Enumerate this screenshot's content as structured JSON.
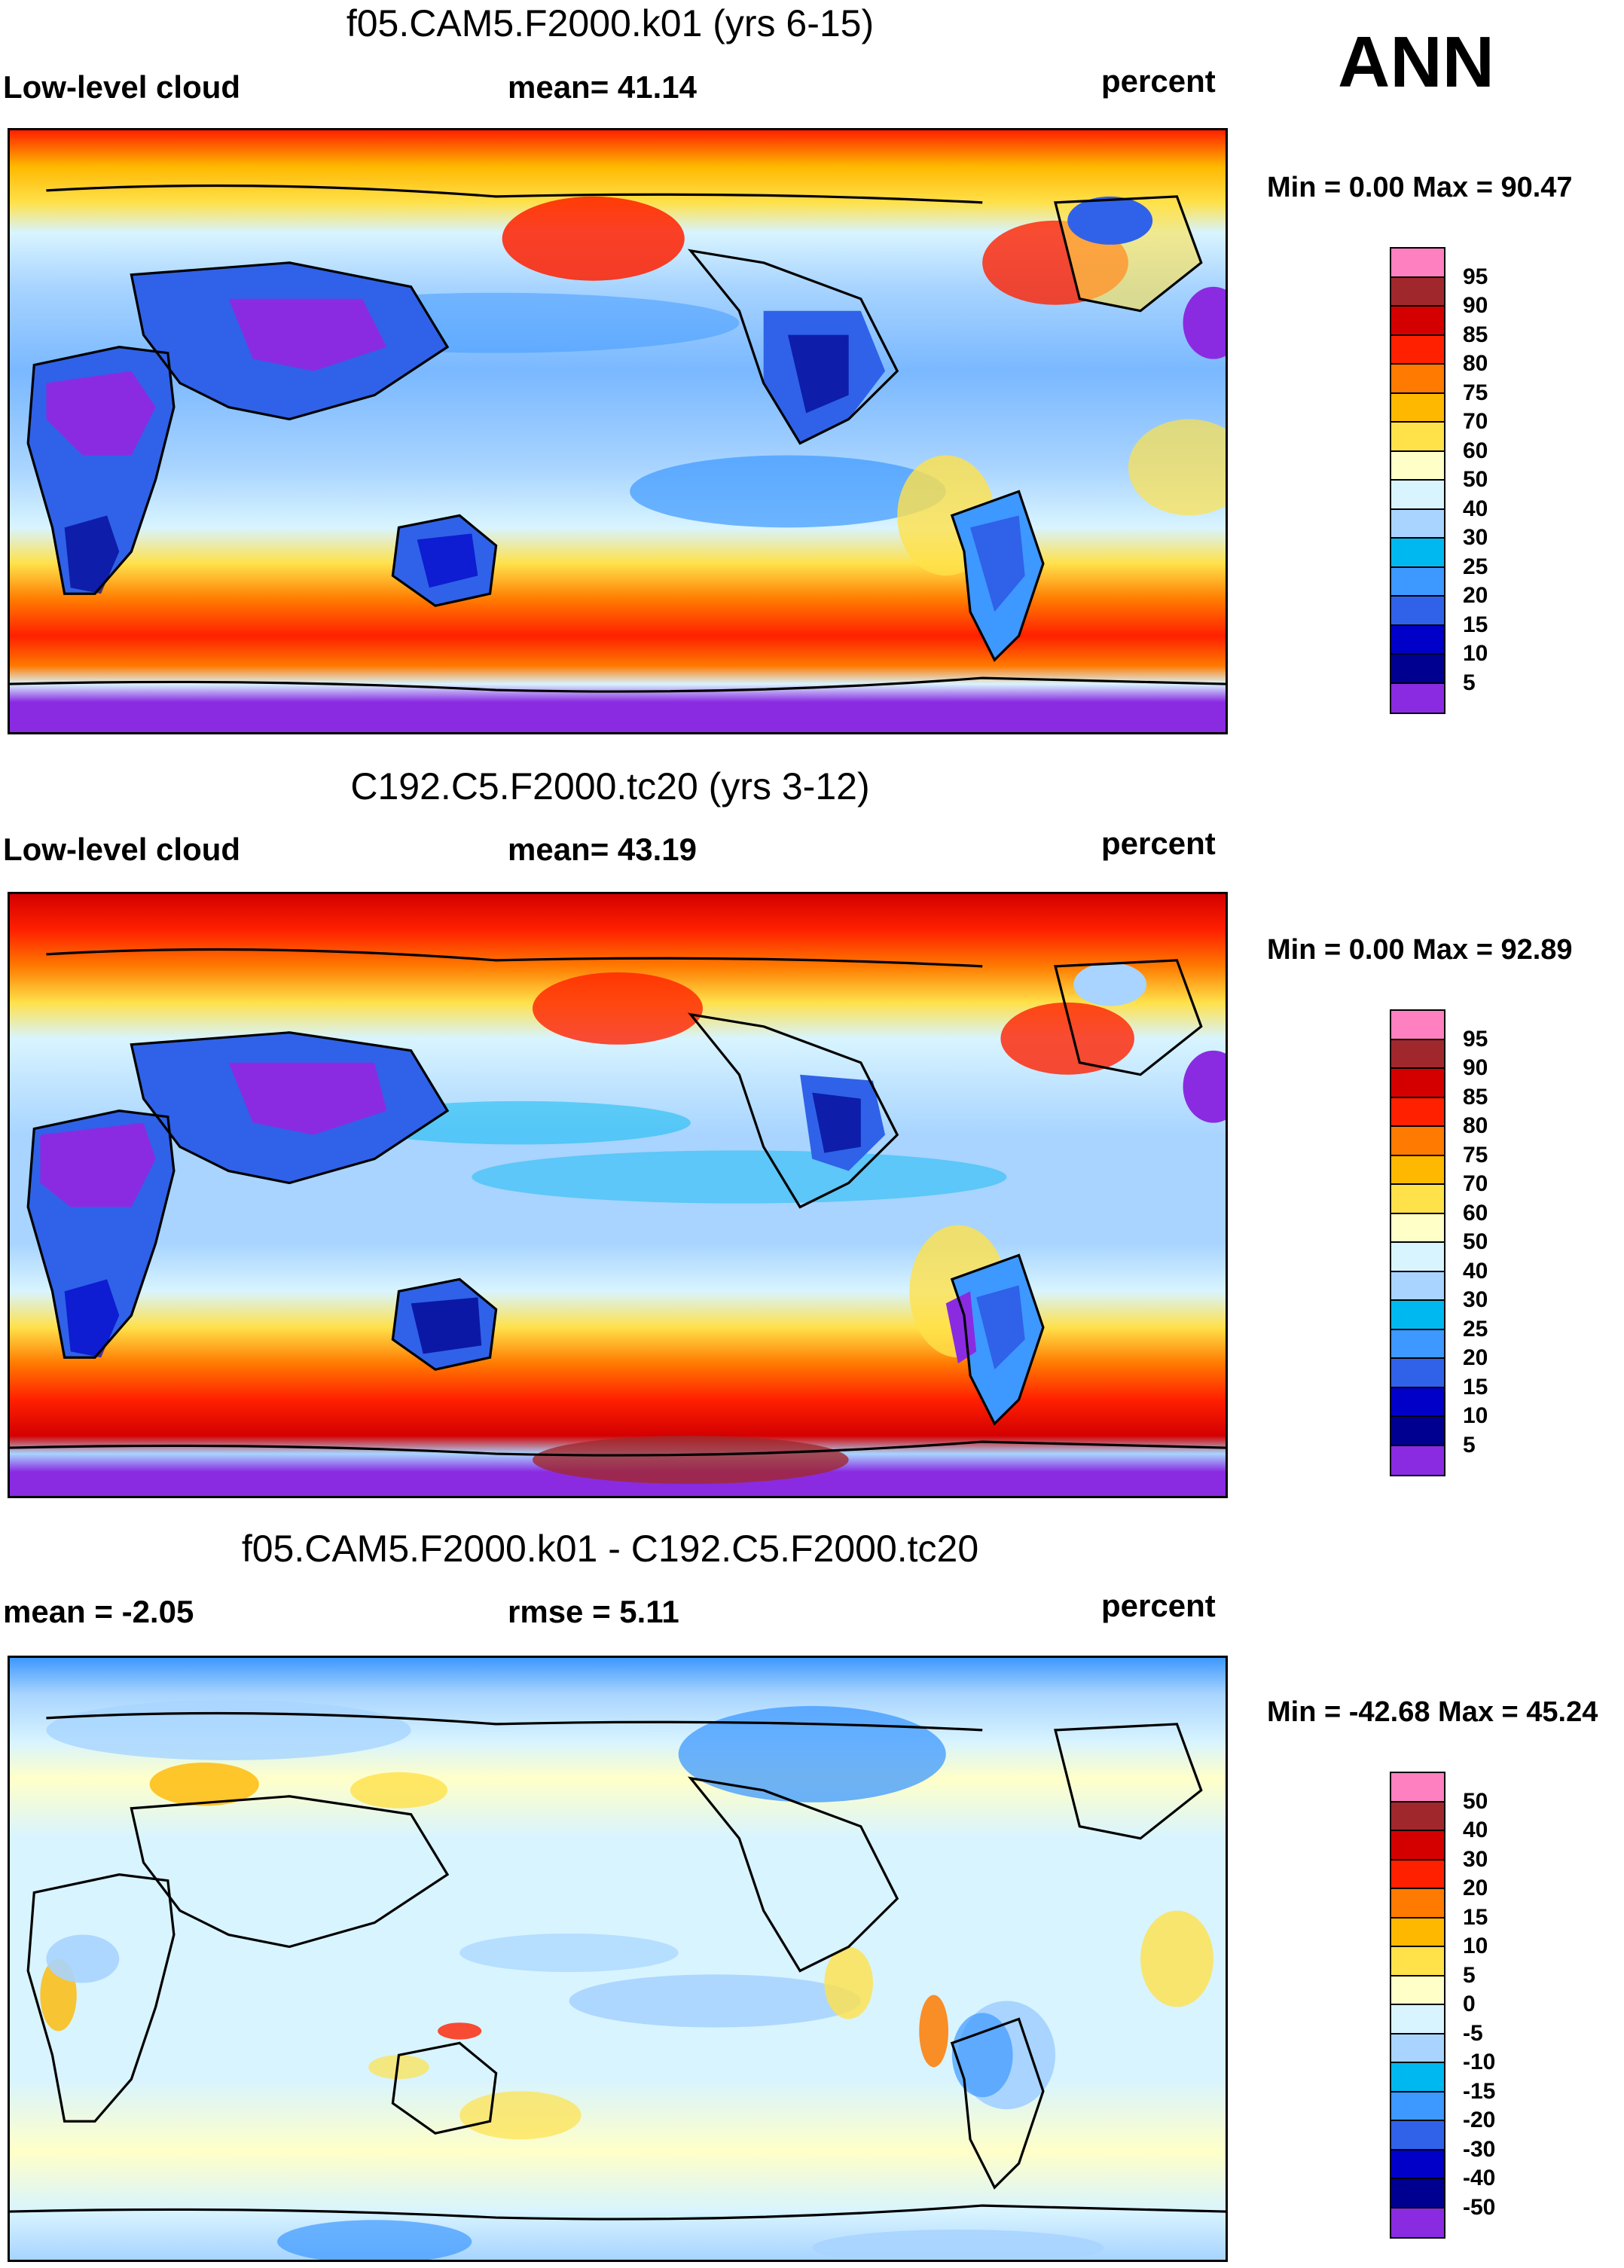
{
  "season": "ANN",
  "panels": [
    {
      "title": "f05.CAM5.F2000.k01 (yrs 6-15)",
      "left_label": "Low-level cloud",
      "center_label": "mean=  41.14",
      "right_label": "percent",
      "minmax": "Min =   0.00 Max =  90.47",
      "colorbar": {
        "colors": [
          "#ff80c0",
          "#a0282d",
          "#d40000",
          "#ff2000",
          "#ff7a00",
          "#ffb800",
          "#ffe14a",
          "#ffffc8",
          "#d8f4ff",
          "#a8d4ff",
          "#00b8f0",
          "#3d98ff",
          "#2f62e8",
          "#0000c8",
          "#000090",
          "#8a2be2"
        ],
        "labels": [
          "95",
          "90",
          "85",
          "80",
          "75",
          "70",
          "60",
          "50",
          "40",
          "30",
          "25",
          "20",
          "15",
          "10",
          "5"
        ]
      }
    },
    {
      "title": "C192.C5.F2000.tc20 (yrs 3-12)",
      "left_label": "Low-level cloud",
      "center_label": "mean=  43.19",
      "right_label": "percent",
      "minmax": "Min =   0.00 Max =  92.89",
      "colorbar": {
        "colors": [
          "#ff80c0",
          "#a0282d",
          "#d40000",
          "#ff2000",
          "#ff7a00",
          "#ffb800",
          "#ffe14a",
          "#ffffc8",
          "#d8f4ff",
          "#a8d4ff",
          "#00b8f0",
          "#3d98ff",
          "#2f62e8",
          "#0000c8",
          "#000090",
          "#8a2be2"
        ],
        "labels": [
          "95",
          "90",
          "85",
          "80",
          "75",
          "70",
          "60",
          "50",
          "40",
          "30",
          "25",
          "20",
          "15",
          "10",
          "5"
        ]
      }
    },
    {
      "title": "f05.CAM5.F2000.k01 - C192.C5.F2000.tc20",
      "left_label": "mean =  -2.05",
      "center_label": "rmse =   5.11",
      "right_label": "percent",
      "minmax": "Min = -42.68 Max =  45.24",
      "colorbar": {
        "colors": [
          "#ff80c0",
          "#a0282d",
          "#d40000",
          "#ff2000",
          "#ff7a00",
          "#ffb800",
          "#ffe14a",
          "#ffffc8",
          "#d8f4ff",
          "#a8d4ff",
          "#00b8f0",
          "#3d98ff",
          "#2f62e8",
          "#0000c8",
          "#000090",
          "#8a2be2"
        ],
        "labels": [
          "50",
          "40",
          "30",
          "20",
          "15",
          "10",
          "5",
          "0",
          "-5",
          "-10",
          "-15",
          "-20",
          "-30",
          "-40",
          "-50"
        ]
      }
    }
  ]
}
